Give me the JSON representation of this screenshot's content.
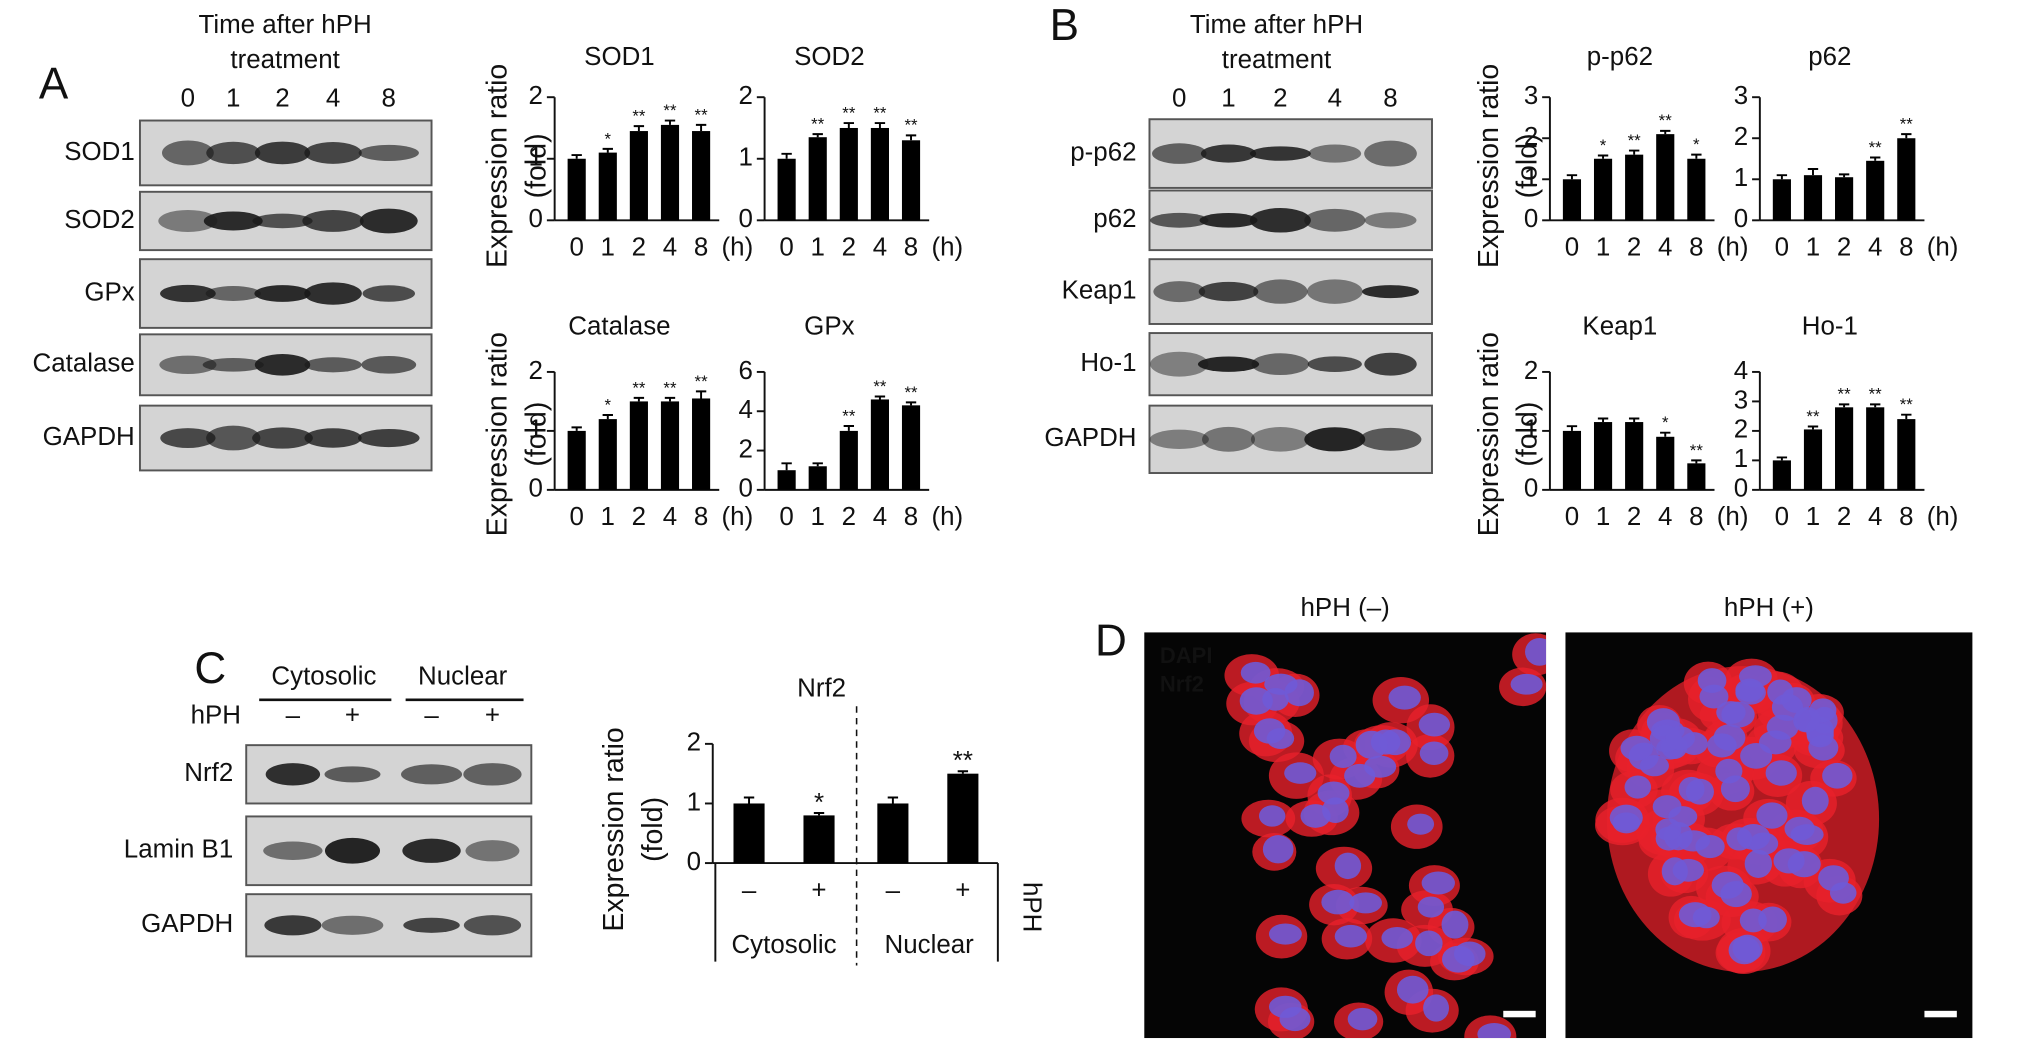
{
  "panel_labels": [
    "A",
    "B",
    "C",
    "D"
  ],
  "blots": [
    {
      "header": [
        "Time after hPH",
        "treatment"
      ],
      "lanes": [
        "0",
        "1",
        "2",
        "4",
        "8"
      ],
      "rows": [
        "SOD1",
        "SOD2",
        "GPx",
        "Catalase",
        "GAPDH"
      ]
    },
    {
      "header": [
        "Time after hPH",
        "treatment"
      ],
      "lanes": [
        "0",
        "1",
        "2",
        "4",
        "8"
      ],
      "rows": [
        "p-p62",
        "p62",
        "Keap1",
        "Ho-1",
        "GAPDH"
      ]
    },
    {
      "groups": [
        "Cytosolic",
        "Nuclear"
      ],
      "condition_label": "hPH",
      "lanes": [
        "–",
        "+",
        "–",
        "+"
      ],
      "rows": [
        "Nrf2",
        "Lamin B1",
        "GAPDH"
      ]
    }
  ],
  "micrographs": {
    "titles": [
      "hPH (–)",
      "hPH (+)"
    ],
    "stains": [
      {
        "name": "DAPI",
        "color": "#3b6fd6"
      },
      {
        "name": "Nrf2",
        "color": "#e8202a"
      }
    ]
  },
  "chart_data": [
    {
      "type": "bar",
      "title": "SOD1",
      "ylabel": [
        "Expression ratio",
        "(fold)"
      ],
      "categories": [
        "0",
        "1",
        "2",
        "4",
        "8"
      ],
      "x_unit": "(h)",
      "values": [
        1.0,
        1.1,
        1.45,
        1.55,
        1.45
      ],
      "errors": [
        0.06,
        0.06,
        0.08,
        0.07,
        0.1
      ],
      "significance": [
        null,
        "*",
        "**",
        "**",
        "**"
      ],
      "color": "#000000",
      "ylim": [
        0,
        2
      ],
      "yticks": [
        0,
        1,
        2
      ]
    },
    {
      "type": "bar",
      "title": "SOD2",
      "categories": [
        "0",
        "1",
        "2",
        "4",
        "8"
      ],
      "x_unit": "(h)",
      "values": [
        1.0,
        1.35,
        1.5,
        1.5,
        1.3
      ],
      "errors": [
        0.08,
        0.05,
        0.08,
        0.08,
        0.08
      ],
      "significance": [
        null,
        "**",
        "**",
        "**",
        "**"
      ],
      "color": "#000000",
      "ylim": [
        0,
        2
      ],
      "yticks": [
        0,
        1,
        2
      ]
    },
    {
      "type": "bar",
      "title": "Catalase",
      "ylabel": [
        "Expression ratio",
        "(fold)"
      ],
      "categories": [
        "0",
        "1",
        "2",
        "4",
        "8"
      ],
      "x_unit": "(h)",
      "values": [
        1.0,
        1.2,
        1.5,
        1.5,
        1.55
      ],
      "errors": [
        0.06,
        0.07,
        0.06,
        0.06,
        0.12
      ],
      "significance": [
        null,
        "*",
        "**",
        "**",
        "**"
      ],
      "color": "#000000",
      "ylim": [
        0,
        2
      ],
      "yticks": [
        0,
        1,
        2
      ]
    },
    {
      "type": "bar",
      "title": "GPx",
      "categories": [
        "0",
        "1",
        "2",
        "4",
        "8"
      ],
      "x_unit": "(h)",
      "values": [
        1.0,
        1.2,
        3.0,
        4.6,
        4.3
      ],
      "errors": [
        0.35,
        0.15,
        0.25,
        0.15,
        0.15
      ],
      "significance": [
        null,
        null,
        "**",
        "**",
        "**"
      ],
      "color": "#000000",
      "ylim": [
        0,
        6
      ],
      "yticks": [
        0,
        2,
        4,
        6
      ]
    },
    {
      "type": "bar",
      "title": "p-p62",
      "ylabel": [
        "Expression ratio",
        "(fold)"
      ],
      "categories": [
        "0",
        "1",
        "2",
        "4",
        "8"
      ],
      "x_unit": "(h)",
      "values": [
        1.0,
        1.5,
        1.6,
        2.1,
        1.5
      ],
      "errors": [
        0.1,
        0.08,
        0.1,
        0.08,
        0.1
      ],
      "significance": [
        null,
        "*",
        "**",
        "**",
        "*"
      ],
      "color": "#000000",
      "ylim": [
        0,
        3
      ],
      "yticks": [
        0,
        1,
        2,
        3
      ]
    },
    {
      "type": "bar",
      "title": "p62",
      "categories": [
        "0",
        "1",
        "2",
        "4",
        "8"
      ],
      "x_unit": "(h)",
      "values": [
        1.0,
        1.1,
        1.05,
        1.45,
        2.0
      ],
      "errors": [
        0.1,
        0.15,
        0.07,
        0.08,
        0.1
      ],
      "significance": [
        null,
        null,
        null,
        "**",
        "**"
      ],
      "color": "#000000",
      "ylim": [
        0,
        3
      ],
      "yticks": [
        0,
        1,
        2,
        3
      ]
    },
    {
      "type": "bar",
      "title": "Keap1",
      "ylabel": [
        "Expression ratio",
        "(fold)"
      ],
      "categories": [
        "0",
        "1",
        "2",
        "4",
        "8"
      ],
      "x_unit": "(h)",
      "values": [
        1.0,
        1.15,
        1.15,
        0.9,
        0.45
      ],
      "errors": [
        0.08,
        0.06,
        0.06,
        0.07,
        0.05
      ],
      "significance": [
        null,
        null,
        null,
        "*",
        "**"
      ],
      "color": "#000000",
      "ylim": [
        0,
        2
      ],
      "yticks": [
        0,
        1,
        2
      ]
    },
    {
      "type": "bar",
      "title": "Ho-1",
      "categories": [
        "0",
        "1",
        "2",
        "4",
        "8"
      ],
      "x_unit": "(h)",
      "values": [
        1.0,
        2.05,
        2.8,
        2.8,
        2.4
      ],
      "errors": [
        0.1,
        0.1,
        0.1,
        0.1,
        0.15
      ],
      "significance": [
        null,
        "**",
        "**",
        "**",
        "**"
      ],
      "color": "#000000",
      "ylim": [
        0,
        4
      ],
      "yticks": [
        0,
        1,
        2,
        3,
        4
      ]
    },
    {
      "type": "bar",
      "title": "Nrf2",
      "ylabel": [
        "Expression ratio",
        "(fold)"
      ],
      "categories": [
        "–",
        "+",
        "–",
        "+"
      ],
      "groups": [
        "Cytosolic",
        "Nuclear"
      ],
      "group_axis_label": "hPH",
      "values": [
        1.0,
        0.8,
        1.0,
        1.5
      ],
      "errors": [
        0.1,
        0.04,
        0.1,
        0.04
      ],
      "significance": [
        null,
        "*",
        null,
        "**"
      ],
      "color": "#000000",
      "ylim": [
        0,
        2
      ],
      "yticks": [
        0,
        1,
        2
      ]
    }
  ]
}
